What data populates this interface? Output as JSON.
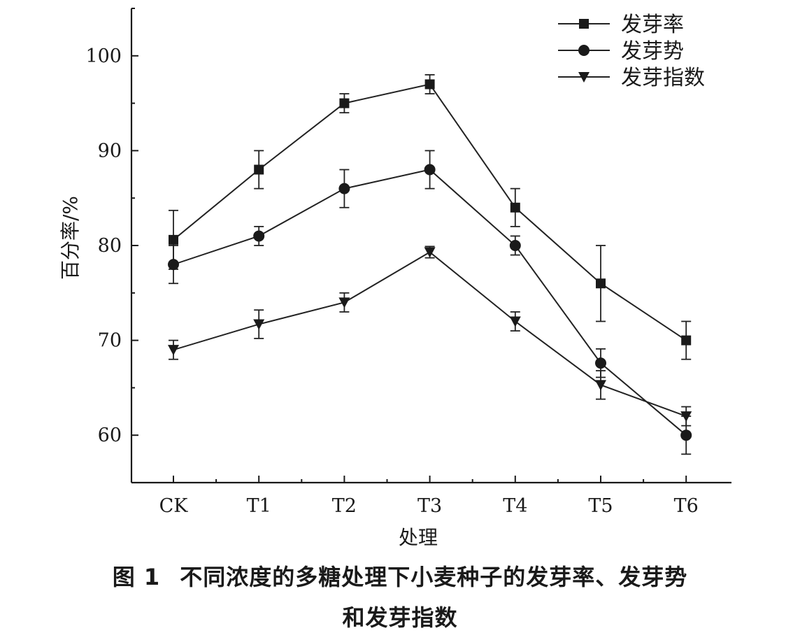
{
  "chart_data": {
    "type": "line",
    "xlabel": "处理",
    "ylabel": "百分率/%",
    "categories": [
      "CK",
      "T1",
      "T2",
      "T3",
      "T4",
      "T5",
      "T6"
    ],
    "ylim": [
      55,
      105
    ],
    "yticks": [
      60,
      70,
      80,
      90,
      100
    ],
    "legend_position": "top-right",
    "grid": false,
    "series": [
      {
        "name": "发芽率",
        "marker": "square",
        "values": [
          80.6,
          88.0,
          95.0,
          97.0,
          84.0,
          76.0,
          70.0
        ],
        "errors": [
          3.1,
          2.0,
          1.0,
          1.0,
          2.0,
          4.0,
          2.0
        ]
      },
      {
        "name": "发芽势",
        "marker": "circle",
        "values": [
          78.0,
          81.0,
          86.0,
          88.0,
          80.0,
          67.6,
          60.0
        ],
        "errors": [
          2.0,
          1.0,
          2.0,
          2.0,
          1.0,
          1.5,
          2.0
        ]
      },
      {
        "name": "发芽指数",
        "marker": "triangle-down",
        "values": [
          69.0,
          71.7,
          74.0,
          79.3,
          72.0,
          65.3,
          62.0
        ],
        "errors": [
          1.0,
          1.5,
          1.0,
          0.6,
          1.0,
          1.5,
          1.0
        ]
      }
    ]
  },
  "caption": {
    "number": "图 1",
    "line1": "不同浓度的多糖处理下小麦种子的发芽率、发芽势",
    "line2": "和发芽指数"
  }
}
